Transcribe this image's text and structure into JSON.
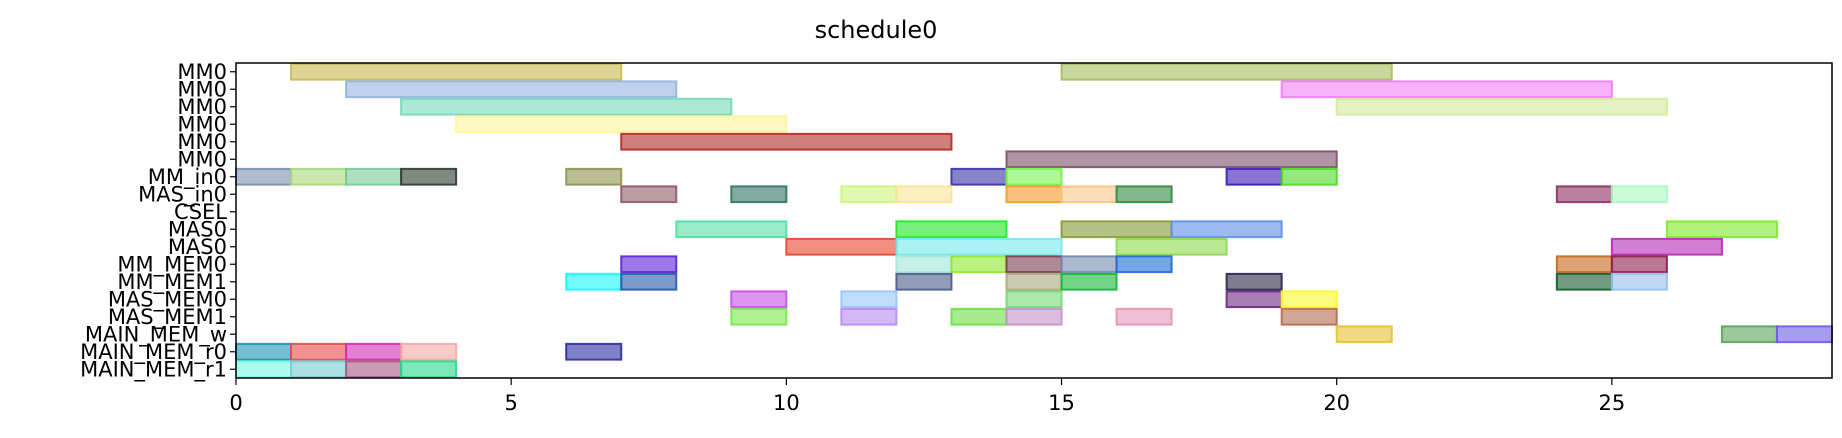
{
  "chart_data": {
    "type": "gantt",
    "title": "schedule0",
    "xlabel": "",
    "ylabel": "",
    "xlim": [
      0,
      29
    ],
    "x_ticks": [
      0,
      5,
      10,
      15,
      20,
      25
    ],
    "grid": false,
    "legend": "none",
    "rows": [
      "MM0",
      "MM0",
      "MM0",
      "MM0",
      "MM0",
      "MM0",
      "MM_in0",
      "MAS_in0",
      "CSEL",
      "MAS0",
      "MAS0",
      "MM_MEM0",
      "MM_MEM1",
      "MAS_MEM0",
      "MAS_MEM1",
      "MAIN_MEM_w",
      "MAIN_MEM_r0",
      "MAIN_MEM_r1"
    ],
    "tasks": [
      {
        "row": 0,
        "start": 1,
        "end": 7,
        "color": "#c8b850"
      },
      {
        "row": 0,
        "start": 15,
        "end": 21,
        "color": "#a8bc5c"
      },
      {
        "row": 1,
        "start": 2,
        "end": 8,
        "color": "#93b3e0"
      },
      {
        "row": 1,
        "start": 19,
        "end": 25,
        "color": "#f07ef4"
      },
      {
        "row": 2,
        "start": 3,
        "end": 9,
        "color": "#74d8b6"
      },
      {
        "row": 2,
        "start": 20,
        "end": 26,
        "color": "#d4e89a"
      },
      {
        "row": 3,
        "start": 4,
        "end": 10,
        "color": "#fff39a"
      },
      {
        "row": 4,
        "start": 7,
        "end": 13,
        "color": "#b22a24"
      },
      {
        "row": 5,
        "start": 14,
        "end": 20,
        "color": "#7c5068"
      },
      {
        "row": 6,
        "start": 0,
        "end": 1,
        "color": "#7a8eae"
      },
      {
        "row": 6,
        "start": 1,
        "end": 2,
        "color": "#a8d87a"
      },
      {
        "row": 6,
        "start": 2,
        "end": 3,
        "color": "#74c894"
      },
      {
        "row": 6,
        "start": 3,
        "end": 4,
        "color": "#2c3830"
      },
      {
        "row": 6,
        "start": 6,
        "end": 7,
        "color": "#8e9450"
      },
      {
        "row": 6,
        "start": 13,
        "end": 14,
        "color": "#3a30a8"
      },
      {
        "row": 6,
        "start": 14,
        "end": 15,
        "color": "#74f250"
      },
      {
        "row": 6,
        "start": 18,
        "end": 19,
        "color": "#3a18b8"
      },
      {
        "row": 6,
        "start": 19,
        "end": 20,
        "color": "#4ed824"
      },
      {
        "row": 7,
        "start": 7,
        "end": 8,
        "color": "#8e5868"
      },
      {
        "row": 7,
        "start": 9,
        "end": 10,
        "color": "#2e7260"
      },
      {
        "row": 7,
        "start": 11,
        "end": 12,
        "color": "#ccf47a"
      },
      {
        "row": 7,
        "start": 12,
        "end": 13,
        "color": "#f6e494"
      },
      {
        "row": 7,
        "start": 14,
        "end": 15,
        "color": "#f49a24"
      },
      {
        "row": 7,
        "start": 15,
        "end": 16,
        "color": "#f8c482"
      },
      {
        "row": 7,
        "start": 16,
        "end": 17,
        "color": "#2e8a40"
      },
      {
        "row": 7,
        "start": 24,
        "end": 25,
        "color": "#8e2c60"
      },
      {
        "row": 7,
        "start": 25,
        "end": 26,
        "color": "#a8f8c0"
      },
      {
        "row": 9,
        "start": 8,
        "end": 10,
        "color": "#4ee0a0"
      },
      {
        "row": 9,
        "start": 12,
        "end": 14,
        "color": "#1ee824"
      },
      {
        "row": 9,
        "start": 15,
        "end": 17,
        "color": "#849a34"
      },
      {
        "row": 9,
        "start": 17,
        "end": 19,
        "color": "#5e8ee4"
      },
      {
        "row": 9,
        "start": 26,
        "end": 28,
        "color": "#7ee82a"
      },
      {
        "row": 10,
        "start": 10,
        "end": 12,
        "color": "#e8442c"
      },
      {
        "row": 10,
        "start": 12,
        "end": 15,
        "color": "#74e8ec"
      },
      {
        "row": 10,
        "start": 16,
        "end": 18,
        "color": "#8ed84a"
      },
      {
        "row": 10,
        "start": 25,
        "end": 27,
        "color": "#b82ab8"
      },
      {
        "row": 11,
        "start": 7,
        "end": 8,
        "color": "#5a20d8"
      },
      {
        "row": 11,
        "start": 12,
        "end": 13,
        "color": "#a0e8d8"
      },
      {
        "row": 11,
        "start": 13,
        "end": 14,
        "color": "#8ee82a"
      },
      {
        "row": 11,
        "start": 14,
        "end": 15,
        "color": "#7a3a50"
      },
      {
        "row": 11,
        "start": 15,
        "end": 16,
        "color": "#7488b0"
      },
      {
        "row": 11,
        "start": 16,
        "end": 17,
        "color": "#1a6cd0"
      },
      {
        "row": 11,
        "start": 24,
        "end": 25,
        "color": "#c46818"
      },
      {
        "row": 11,
        "start": 25,
        "end": 26,
        "color": "#8e1a50"
      },
      {
        "row": 12,
        "start": 6,
        "end": 7,
        "color": "#14f8f8"
      },
      {
        "row": 12,
        "start": 7,
        "end": 8,
        "color": "#2458a8"
      },
      {
        "row": 12,
        "start": 12,
        "end": 13,
        "color": "#4a5a88"
      },
      {
        "row": 12,
        "start": 14,
        "end": 15,
        "color": "#a8a87a"
      },
      {
        "row": 12,
        "start": 15,
        "end": 16,
        "color": "#14b43a"
      },
      {
        "row": 12,
        "start": 18,
        "end": 19,
        "color": "#2a2448"
      },
      {
        "row": 12,
        "start": 24,
        "end": 25,
        "color": "#145a2e"
      },
      {
        "row": 12,
        "start": 25,
        "end": 26,
        "color": "#94c0ec"
      },
      {
        "row": 13,
        "start": 9,
        "end": 10,
        "color": "#c44ee8"
      },
      {
        "row": 13,
        "start": 11,
        "end": 12,
        "color": "#94c4f8"
      },
      {
        "row": 13,
        "start": 14,
        "end": 15,
        "color": "#74d874"
      },
      {
        "row": 13,
        "start": 18,
        "end": 19,
        "color": "#6a2484"
      },
      {
        "row": 13,
        "start": 19,
        "end": 20,
        "color": "#f8f82a"
      },
      {
        "row": 14,
        "start": 9,
        "end": 10,
        "color": "#74e84a"
      },
      {
        "row": 14,
        "start": 11,
        "end": 12,
        "color": "#b888f4"
      },
      {
        "row": 14,
        "start": 13,
        "end": 14,
        "color": "#6ae044"
      },
      {
        "row": 14,
        "start": 14,
        "end": 15,
        "color": "#c490c8"
      },
      {
        "row": 14,
        "start": 16,
        "end": 17,
        "color": "#e494b4"
      },
      {
        "row": 14,
        "start": 19,
        "end": 20,
        "color": "#b46a50"
      },
      {
        "row": 15,
        "start": 20,
        "end": 21,
        "color": "#e4c030"
      },
      {
        "row": 15,
        "start": 27,
        "end": 28,
        "color": "#5aa458"
      },
      {
        "row": 15,
        "start": 28,
        "end": 29,
        "color": "#6e5ae4"
      },
      {
        "row": 16,
        "start": 0,
        "end": 1,
        "color": "#1894b4"
      },
      {
        "row": 16,
        "start": 1,
        "end": 2,
        "color": "#e84a4a"
      },
      {
        "row": 16,
        "start": 2,
        "end": 3,
        "color": "#d42ab4"
      },
      {
        "row": 16,
        "start": 3,
        "end": 4,
        "color": "#f4a8a4"
      },
      {
        "row": 16,
        "start": 6,
        "end": 7,
        "color": "#2a2ca0"
      },
      {
        "row": 17,
        "start": 0,
        "end": 1,
        "color": "#74f8e4"
      },
      {
        "row": 17,
        "start": 1,
        "end": 2,
        "color": "#74ccd4"
      },
      {
        "row": 17,
        "start": 2,
        "end": 3,
        "color": "#a45a84"
      },
      {
        "row": 17,
        "start": 3,
        "end": 4,
        "color": "#24d88a"
      }
    ]
  }
}
